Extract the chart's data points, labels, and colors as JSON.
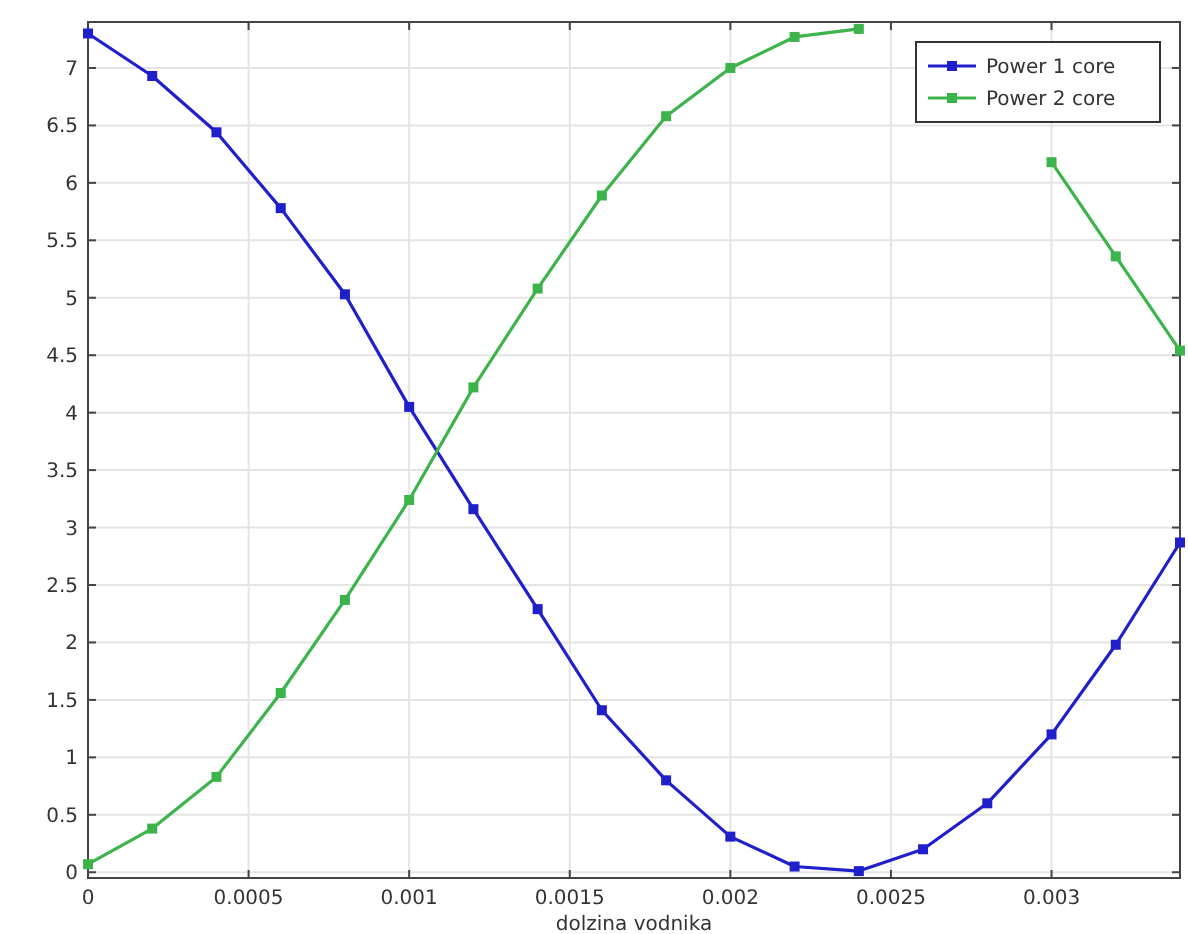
{
  "chart_data": {
    "type": "line",
    "xlabel": "dolzina vodnika",
    "x": [
      0,
      0.0002,
      0.0004,
      0.0006,
      0.0008,
      0.001,
      0.0012,
      0.0014,
      0.0016,
      0.0018,
      0.002,
      0.0022,
      0.0024,
      0.0026,
      0.0028,
      0.003,
      0.0032,
      0.0034
    ],
    "series": [
      {
        "name": "Power 1 core",
        "color": "#1f1fcc",
        "values": [
          7.3,
          6.93,
          6.44,
          5.78,
          5.03,
          4.05,
          3.16,
          2.29,
          1.41,
          0.8,
          0.31,
          0.05,
          0.01,
          0.2,
          0.6,
          1.2,
          1.98,
          2.87
        ]
      },
      {
        "name": "Power 2 core",
        "color": "#3cb44b",
        "values": [
          0.07,
          0.38,
          0.83,
          1.56,
          2.37,
          3.24,
          4.22,
          5.08,
          5.89,
          6.58,
          7.0,
          7.27,
          7.34,
          null,
          null,
          6.18,
          5.36,
          4.54
        ]
      }
    ],
    "xlim": [
      0,
      0.0034
    ],
    "ylim": [
      -0.05,
      7.4
    ],
    "xticks": [
      0,
      0.0005,
      0.001,
      0.0015,
      0.002,
      0.0025,
      0.003
    ],
    "yticks": [
      0,
      0.5,
      1,
      1.5,
      2,
      2.5,
      3,
      3.5,
      4,
      4.5,
      5,
      5.5,
      6,
      6.5,
      7
    ],
    "grid": true,
    "legend": "top right",
    "marker": "square",
    "line_style": "solid"
  }
}
